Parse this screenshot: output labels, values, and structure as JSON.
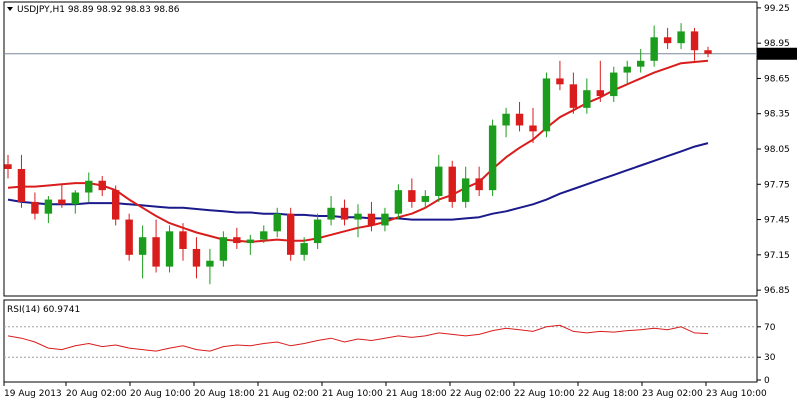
{
  "chart_data": [
    {
      "type": "candlestick",
      "symbol_label": "USDJPY,H1",
      "ohlc_label": "98.89 98.92 98.83 98.86",
      "current_price_label": "98.86",
      "current_price": 98.86,
      "ylim": [
        96.8,
        99.3
      ],
      "y_ticks": [
        "99.25",
        "98.95",
        "98.65",
        "98.35",
        "98.05",
        "97.75",
        "97.45",
        "97.15",
        "96.85"
      ],
      "y_tick_values": [
        99.25,
        98.95,
        98.65,
        98.35,
        98.05,
        97.75,
        97.45,
        97.15,
        96.85
      ],
      "x_ticks": [
        "19 Aug 2013",
        "20 Aug 02:00",
        "20 Aug 10:00",
        "20 Aug 18:00",
        "21 Aug 02:00",
        "21 Aug 10:00",
        "21 Aug 18:00",
        "22 Aug 02:00",
        "22 Aug 10:00",
        "22 Aug 18:00",
        "23 Aug 02:00",
        "23 Aug 10:00"
      ],
      "candles": [
        [
          97.92,
          98.0,
          97.8,
          97.88
        ],
        [
          97.88,
          98.0,
          97.55,
          97.6
        ],
        [
          97.6,
          97.68,
          97.45,
          97.5
        ],
        [
          97.5,
          97.65,
          97.42,
          97.62
        ],
        [
          97.62,
          97.75,
          97.55,
          97.58
        ],
        [
          97.58,
          97.7,
          97.5,
          97.68
        ],
        [
          97.68,
          97.85,
          97.6,
          97.78
        ],
        [
          97.78,
          97.82,
          97.65,
          97.7
        ],
        [
          97.7,
          97.74,
          97.4,
          97.45
        ],
        [
          97.45,
          97.5,
          97.1,
          97.15
        ],
        [
          97.15,
          97.4,
          96.95,
          97.3
        ],
        [
          97.3,
          97.45,
          97.0,
          97.05
        ],
        [
          97.05,
          97.4,
          97.0,
          97.35
        ],
        [
          97.35,
          97.42,
          97.1,
          97.2
        ],
        [
          97.2,
          97.3,
          96.95,
          97.05
        ],
        [
          97.05,
          97.2,
          96.9,
          97.1
        ],
        [
          97.1,
          97.35,
          97.05,
          97.3
        ],
        [
          97.3,
          97.38,
          97.2,
          97.25
        ],
        [
          97.25,
          97.32,
          97.15,
          97.28
        ],
        [
          97.28,
          97.4,
          97.25,
          97.35
        ],
        [
          97.35,
          97.55,
          97.3,
          97.5
        ],
        [
          97.5,
          97.55,
          97.1,
          97.15
        ],
        [
          97.15,
          97.3,
          97.1,
          97.25
        ],
        [
          97.25,
          97.5,
          97.2,
          97.45
        ],
        [
          97.45,
          97.65,
          97.4,
          97.55
        ],
        [
          97.55,
          97.62,
          97.4,
          97.45
        ],
        [
          97.45,
          97.58,
          97.3,
          97.5
        ],
        [
          97.5,
          97.6,
          97.35,
          97.4
        ],
        [
          97.4,
          97.55,
          97.35,
          97.5
        ],
        [
          97.5,
          97.75,
          97.45,
          97.7
        ],
        [
          97.7,
          97.8,
          97.55,
          97.6
        ],
        [
          97.6,
          97.7,
          97.55,
          97.65
        ],
        [
          97.65,
          98.0,
          97.6,
          97.9
        ],
        [
          97.9,
          97.95,
          97.55,
          97.6
        ],
        [
          97.6,
          97.9,
          97.55,
          97.8
        ],
        [
          97.8,
          97.9,
          97.65,
          97.7
        ],
        [
          97.7,
          98.3,
          97.65,
          98.25
        ],
        [
          98.25,
          98.4,
          98.15,
          98.35
        ],
        [
          98.35,
          98.45,
          98.2,
          98.25
        ],
        [
          98.25,
          98.4,
          98.1,
          98.2
        ],
        [
          98.2,
          98.7,
          98.15,
          98.65
        ],
        [
          98.65,
          98.8,
          98.55,
          98.6
        ],
        [
          98.6,
          98.7,
          98.35,
          98.4
        ],
        [
          98.4,
          98.65,
          98.35,
          98.55
        ],
        [
          98.55,
          98.8,
          98.45,
          98.5
        ],
        [
          98.5,
          98.75,
          98.45,
          98.7
        ],
        [
          98.7,
          98.8,
          98.6,
          98.75
        ],
        [
          98.75,
          98.9,
          98.7,
          98.8
        ],
        [
          98.8,
          99.1,
          98.75,
          99.0
        ],
        [
          99.0,
          99.08,
          98.9,
          98.95
        ],
        [
          98.95,
          99.12,
          98.9,
          99.05
        ],
        [
          99.05,
          99.08,
          98.8,
          98.89
        ],
        [
          98.89,
          98.92,
          98.83,
          98.86
        ]
      ],
      "ma_fast": [
        97.72,
        97.73,
        97.73,
        97.74,
        97.75,
        97.76,
        97.76,
        97.74,
        97.7,
        97.62,
        97.55,
        97.48,
        97.42,
        97.38,
        97.34,
        97.31,
        97.28,
        97.27,
        97.26,
        97.27,
        97.28,
        97.27,
        97.27,
        97.29,
        97.32,
        97.35,
        97.38,
        97.4,
        97.43,
        97.47,
        97.5,
        97.55,
        97.62,
        97.66,
        97.72,
        97.77,
        97.88,
        97.98,
        98.06,
        98.13,
        98.23,
        98.32,
        98.38,
        98.44,
        98.49,
        98.55,
        98.6,
        98.65,
        98.7,
        98.74,
        98.78,
        98.79,
        98.8
      ],
      "ma_slow": [
        97.62,
        97.6,
        97.59,
        97.58,
        97.58,
        97.58,
        97.59,
        97.59,
        97.59,
        97.58,
        97.57,
        97.56,
        97.55,
        97.55,
        97.54,
        97.53,
        97.52,
        97.51,
        97.51,
        97.5,
        97.5,
        97.49,
        97.49,
        97.48,
        97.48,
        97.47,
        97.47,
        97.46,
        97.46,
        97.46,
        97.45,
        97.45,
        97.45,
        97.45,
        97.46,
        97.47,
        97.5,
        97.52,
        97.55,
        97.58,
        97.62,
        97.67,
        97.71,
        97.75,
        97.79,
        97.83,
        97.87,
        97.91,
        97.95,
        97.99,
        98.03,
        98.07,
        98.1
      ]
    },
    {
      "type": "line",
      "indicator_label": "RSI(14) 60.9741",
      "ylim": [
        0,
        100
      ],
      "y_ticks": [
        "70",
        "30",
        "0"
      ],
      "y_tick_values": [
        70,
        30,
        0
      ],
      "levels": [
        70,
        30
      ],
      "values": [
        58,
        55,
        50,
        42,
        40,
        45,
        48,
        44,
        46,
        42,
        40,
        38,
        42,
        45,
        40,
        38,
        44,
        46,
        45,
        48,
        50,
        45,
        48,
        52,
        55,
        50,
        54,
        52,
        55,
        58,
        56,
        58,
        62,
        60,
        58,
        60,
        65,
        68,
        66,
        64,
        70,
        72,
        64,
        62,
        64,
        63,
        65,
        66,
        68,
        66,
        70,
        62,
        61
      ]
    }
  ]
}
